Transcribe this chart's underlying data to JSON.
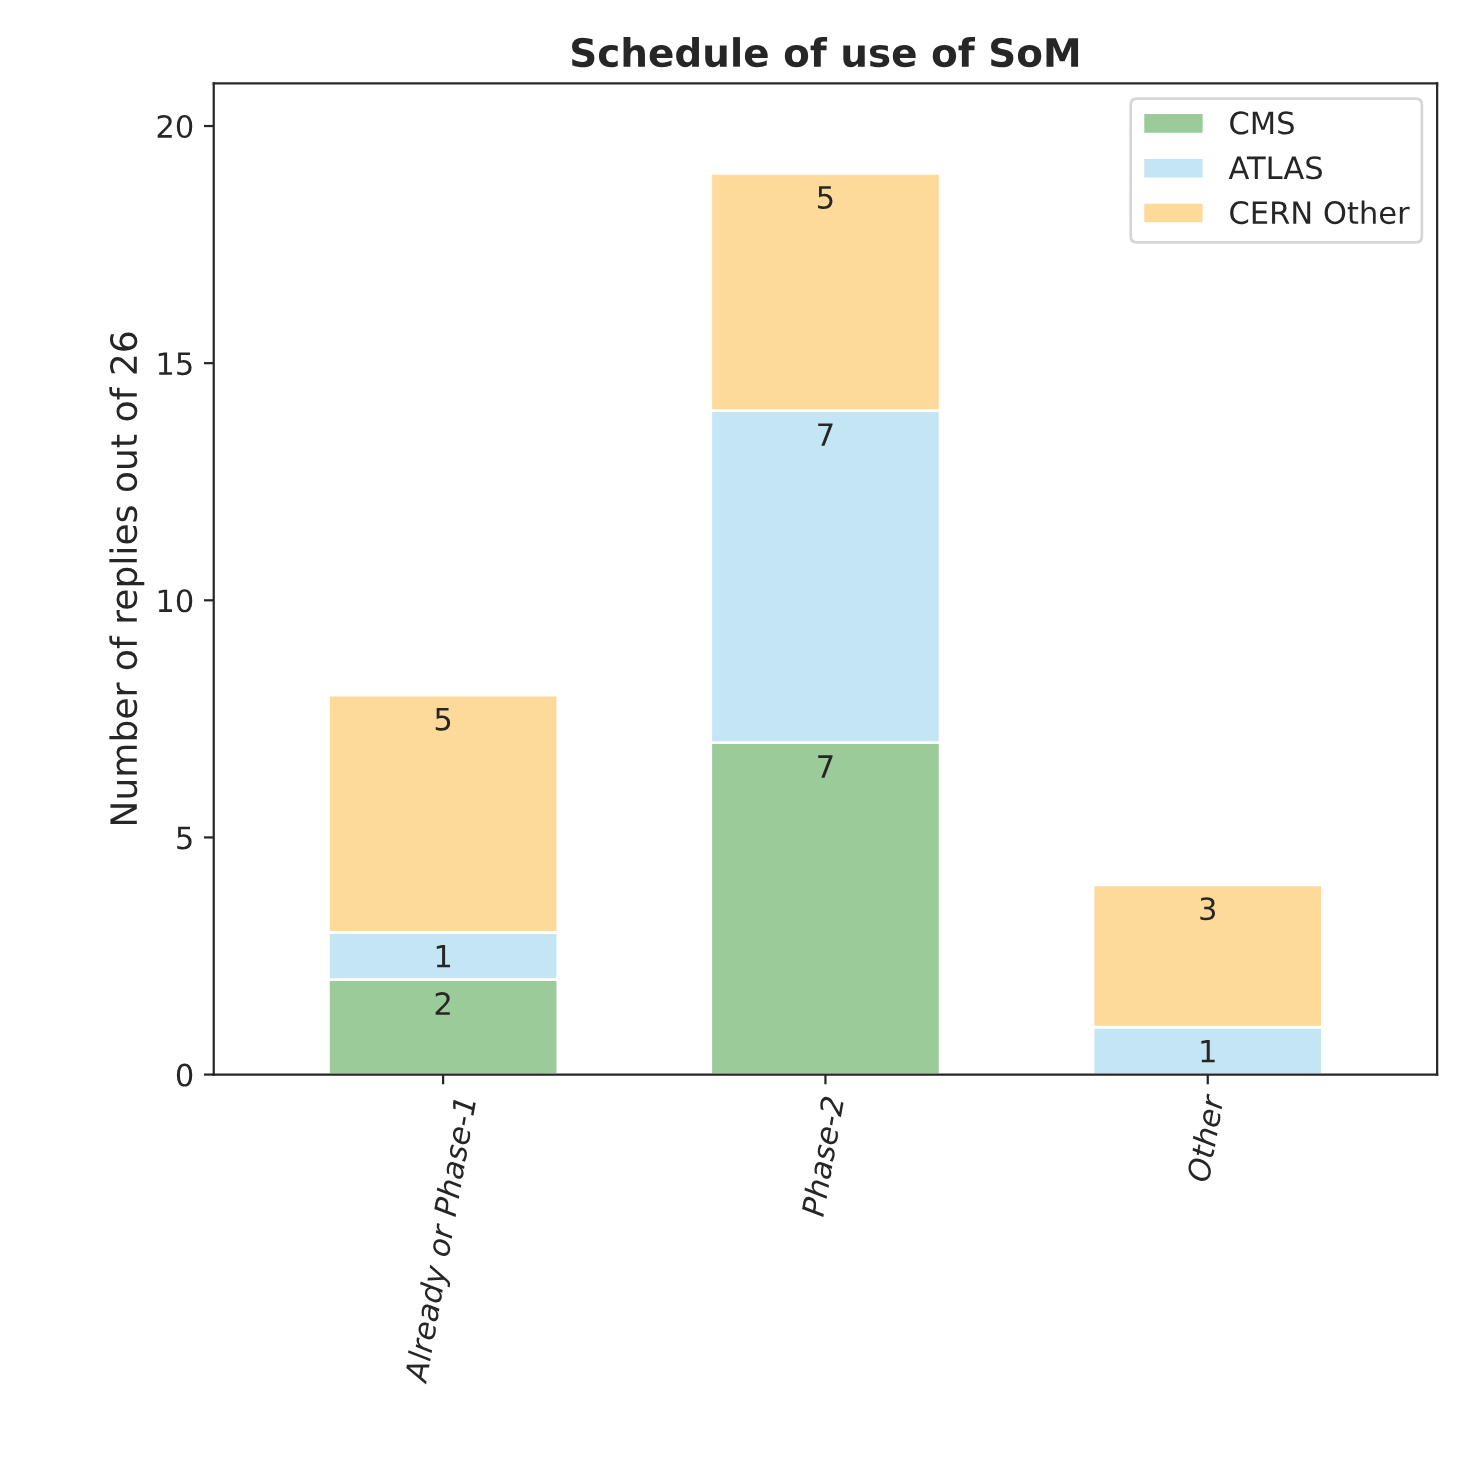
{
  "chart_data": {
    "type": "bar",
    "title": "Schedule of use of SoM",
    "ylabel": "Number of replies out of 26",
    "categories": [
      "Already or Phase-1",
      "Phase-2",
      "Other"
    ],
    "stacked": true,
    "series": [
      {
        "name": "CMS",
        "color": "#9acb98",
        "values": [
          2,
          7,
          0
        ],
        "value_labels": [
          "2",
          "7",
          null
        ]
      },
      {
        "name": "ATLAS",
        "color": "#c3e5f4",
        "values": [
          1,
          7,
          1
        ],
        "value_labels": [
          "1",
          "7",
          "1"
        ]
      },
      {
        "name": "CERN Other",
        "color": "#fdd99a",
        "values": [
          5,
          5,
          3
        ],
        "value_labels": [
          "5",
          "5",
          "3"
        ]
      }
    ],
    "ylim": [
      0,
      20.9
    ],
    "yticks": [
      0,
      5,
      10,
      15,
      20
    ],
    "grid": false,
    "legend": "top right"
  }
}
